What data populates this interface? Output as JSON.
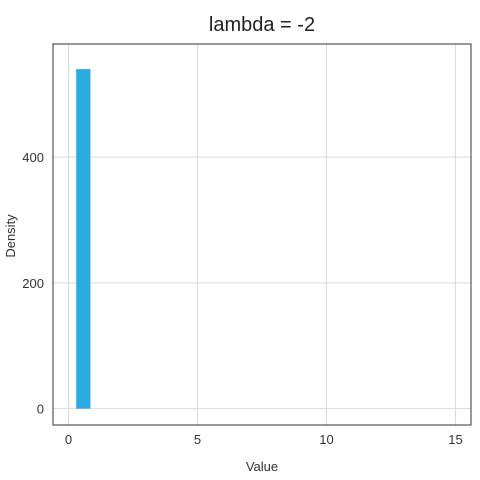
{
  "chart_data": {
    "type": "bar",
    "title": "lambda = -2",
    "xlabel": "Value",
    "ylabel": "Density",
    "xlim": [
      -0.6,
      15.6
    ],
    "ylim": [
      -26,
      580
    ],
    "x_ticks": [
      0,
      5,
      10,
      15
    ],
    "y_ticks": [
      0,
      200,
      400
    ],
    "x_tick_labels": [
      "0",
      "5",
      "10",
      "15"
    ],
    "y_tick_labels": [
      "0",
      "200",
      "400"
    ],
    "grid": true,
    "legend": "none",
    "bar_color": "#29abe2",
    "bins": [
      {
        "x0": 0.3,
        "x1": 0.85,
        "value": 540
      }
    ]
  }
}
